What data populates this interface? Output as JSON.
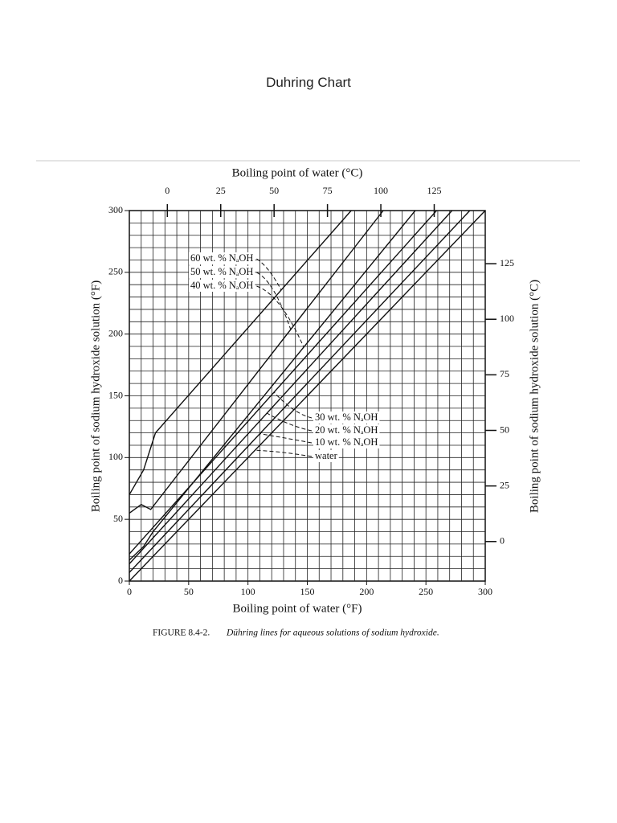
{
  "page": {
    "title": "Duhring Chart"
  },
  "caption": {
    "label": "FIGURE 8.4-2.",
    "text": "Dühring lines for aqueous solutions of sodium hydroxide."
  },
  "chart_data": {
    "type": "line",
    "x_label": "Boiling point of water (°F)",
    "x2_label": "Boiling point of water (°C)",
    "y_label": "Boiling point of sodium hydroxide solution (°F)",
    "y2_label": "Boiling point of sodium hydroxide solution (°C)",
    "xlim": [
      0,
      300
    ],
    "xticks": [
      0,
      50,
      100,
      150,
      200,
      250,
      300
    ],
    "ylim": [
      0,
      300
    ],
    "yticks": [
      0,
      50,
      100,
      150,
      200,
      250,
      300
    ],
    "x2lim": [
      -17.8,
      148.9
    ],
    "x2ticks": [
      0,
      25,
      50,
      75,
      100,
      125
    ],
    "y2lim": [
      -17.8,
      148.9
    ],
    "y2ticks": [
      0,
      25,
      50,
      75,
      100,
      125
    ],
    "grid": true,
    "minor_grid": 10,
    "series": [
      {
        "name": "water",
        "color": "#111",
        "x": [
          0,
          300
        ],
        "values": [
          0,
          300
        ]
      },
      {
        "name": "10 wt. % NₐOH",
        "color": "#111",
        "x": [
          0,
          287
        ],
        "values": [
          7,
          300
        ]
      },
      {
        "name": "20 wt. % NₐOH",
        "color": "#111",
        "x": [
          0,
          272
        ],
        "values": [
          14,
          300
        ]
      },
      {
        "name": "30 wt. % NₐOH",
        "color": "#111",
        "x": [
          0,
          259
        ],
        "values": [
          22,
          300
        ]
      },
      {
        "name": "40 wt. % NₐOH",
        "color": "#111",
        "x": [
          0,
          12,
          20,
          241
        ],
        "values": [
          17,
          28,
          40,
          300
        ]
      },
      {
        "name": "50 wt. % NₐOH",
        "color": "#111",
        "x": [
          0,
          10,
          18,
          214
        ],
        "values": [
          55,
          62,
          58,
          300
        ]
      },
      {
        "name": "60 wt. % NₐOH",
        "color": "#111",
        "x": [
          0,
          12,
          22,
          187
        ],
        "values": [
          70,
          90,
          120,
          300
        ]
      }
    ]
  }
}
